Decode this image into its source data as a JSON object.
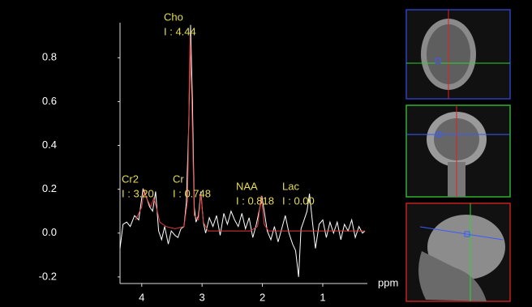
{
  "chart_data": {
    "type": "line",
    "x_label": "ppm",
    "xlim": [
      4.36,
      0.26
    ],
    "xticks": [
      4,
      3,
      2,
      1
    ],
    "ylim": [
      -0.23,
      0.96
    ],
    "yticks": [
      0.8,
      0.6,
      0.4,
      0.2,
      {
        "value": 0,
        "label": "0.0"
      },
      -0.2
    ],
    "series": [
      {
        "color": "#ffffff",
        "x": [
          4.36,
          4.31,
          4.25,
          4.19,
          4.12,
          4.05,
          3.98,
          3.93,
          3.87,
          3.82,
          3.77,
          3.72,
          3.67,
          3.62,
          3.56,
          3.51,
          3.45,
          3.4,
          3.35,
          3.3,
          3.26,
          3.22,
          3.19,
          3.16,
          3.13,
          3.1,
          3.06,
          3.02,
          2.98,
          2.94,
          2.88,
          2.82,
          2.76,
          2.7,
          2.64,
          2.58,
          2.52,
          2.46,
          2.4,
          2.34,
          2.28,
          2.22,
          2.16,
          2.1,
          2.04,
          2.01,
          1.97,
          1.92,
          1.86,
          1.8,
          1.74,
          1.68,
          1.62,
          1.56,
          1.5,
          1.45,
          1.4,
          1.36,
          1.32,
          1.26,
          1.22,
          1.17,
          1.12,
          1.06,
          1.0,
          0.94,
          0.88,
          0.82,
          0.76,
          0.7,
          0.64,
          0.58,
          0.52,
          0.46,
          0.4,
          0.34,
          0.3
        ],
        "values": [
          -0.07,
          0.04,
          0.05,
          0.03,
          0.08,
          0.06,
          0.2,
          0.17,
          0.12,
          0.1,
          0.19,
          0.01,
          -0.03,
          0.03,
          -0.05,
          0.01,
          -0.01,
          -0.02,
          0.02,
          0.03,
          0.14,
          0.5,
          0.95,
          0.6,
          0.12,
          0.05,
          0.08,
          0.19,
          0.05,
          0.0,
          0.07,
          0.03,
          0.08,
          -0.01,
          0.09,
          0.04,
          0.1,
          0.06,
          0.03,
          0.09,
          0.02,
          0.07,
          -0.02,
          0.04,
          0.12,
          0.17,
          0.1,
          0.01,
          -0.03,
          0.03,
          -0.04,
          0.02,
          0.08,
          0.0,
          -0.05,
          -0.08,
          -0.2,
          0.02,
          0.05,
          0.1,
          0.18,
          0.05,
          -0.07,
          0.04,
          0.06,
          -0.02,
          0.05,
          0.0,
          0.05,
          -0.03,
          0.04,
          0.01,
          0.06,
          -0.02,
          0.03,
          0.0,
          0.01
        ]
      },
      {
        "color": "#e03c3c",
        "x": [
          4.1,
          4.0,
          3.96,
          3.92,
          3.85,
          3.8,
          3.76,
          3.7,
          3.6,
          3.45,
          3.3,
          3.24,
          3.2,
          3.17,
          3.13,
          3.06,
          3.02,
          2.98,
          2.9,
          2.6,
          2.2,
          2.08,
          2.02,
          1.97,
          1.9,
          1.3,
          0.3
        ],
        "values": [
          0.06,
          0.12,
          0.2,
          0.16,
          0.12,
          0.16,
          0.12,
          0.05,
          0.03,
          0.02,
          0.03,
          0.15,
          0.9,
          0.6,
          0.08,
          0.06,
          0.18,
          0.05,
          0.01,
          0.01,
          0.01,
          0.03,
          0.17,
          0.04,
          0.01,
          0.01,
          0.01
        ]
      }
    ],
    "annotations": [
      {
        "name": "Cho",
        "text": "I : 4.44"
      },
      {
        "name": "Cr2",
        "text": "I : 3.20"
      },
      {
        "name": "Cr",
        "text": "I : 0.748"
      },
      {
        "name": "NAA",
        "text": "I : 0.818"
      },
      {
        "name": "Lac",
        "text": "I : 0.00"
      }
    ]
  }
}
